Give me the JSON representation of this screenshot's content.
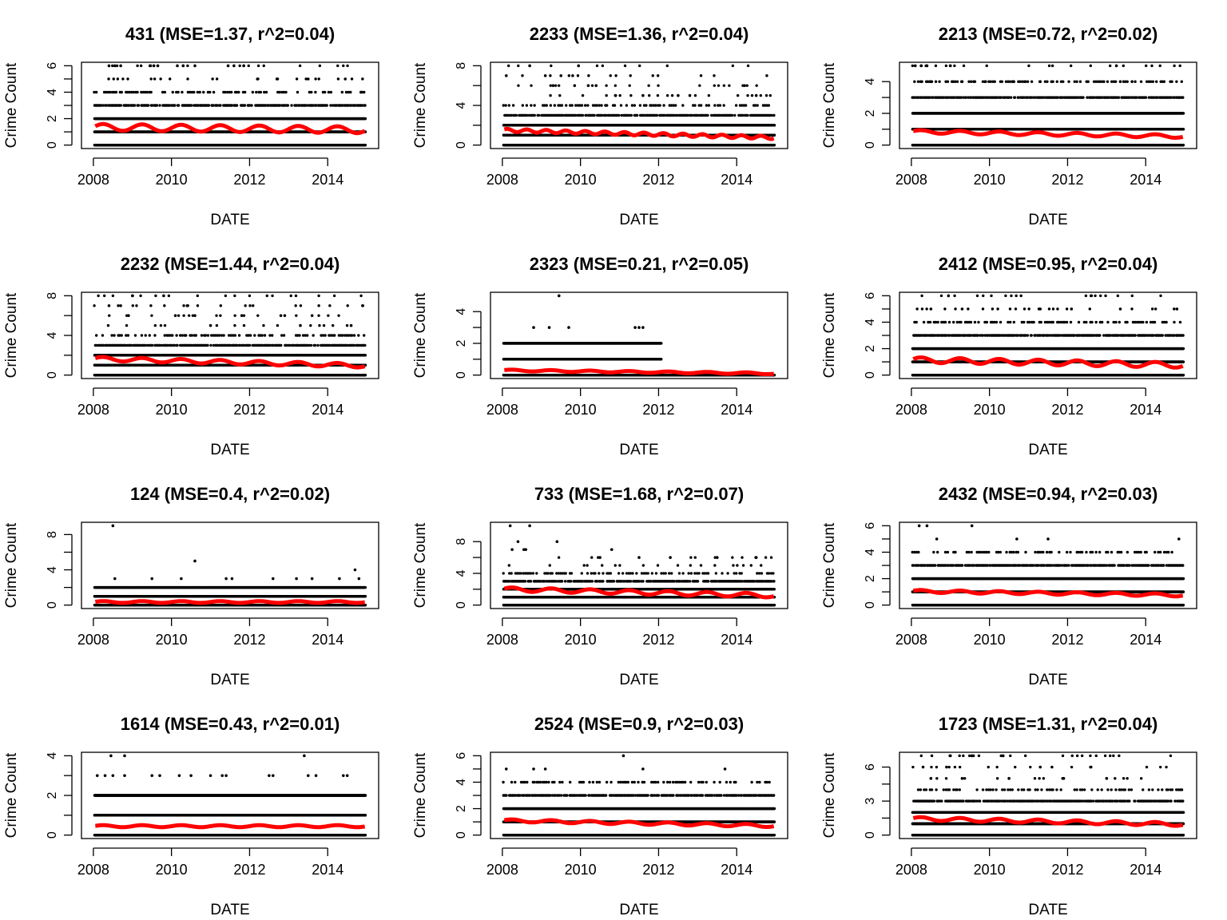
{
  "chart_data": [
    {
      "type": "scatter",
      "title": "431 (MSE=1.37, r^2=0.04)",
      "xlabel": "DATE",
      "ylabel": "Crime Count",
      "xlim": [
        2008,
        2015
      ],
      "ylim": [
        0,
        6
      ],
      "yticks": [
        0,
        2,
        4,
        6
      ],
      "xticks": [
        2008,
        2010,
        2012,
        2014
      ],
      "observed": {
        "levels": [
          0,
          1,
          2,
          3,
          4,
          5,
          6
        ],
        "outlier_points": [
          [
            2008.4,
            6
          ],
          [
            2008.55,
            6
          ],
          [
            2008.7,
            6
          ],
          [
            2009.45,
            6
          ],
          [
            2009.55,
            6
          ],
          [
            2009.65,
            6
          ],
          [
            2010.15,
            6
          ],
          [
            2010.3,
            6
          ],
          [
            2010.6,
            6
          ],
          [
            2011.45,
            6
          ],
          [
            2011.6,
            6
          ],
          [
            2011.85,
            6
          ],
          [
            2012.2,
            5
          ],
          [
            2012.7,
            5
          ],
          [
            2013.5,
            5
          ],
          [
            2014.45,
            5
          ],
          [
            2014.85,
            4
          ]
        ]
      },
      "fit": {
        "color": "#ff0000",
        "mean_start": 1.35,
        "mean_end": 1.15,
        "amplitude": 0.25,
        "period_years": 1.0
      }
    },
    {
      "type": "scatter",
      "title": "2233 (MSE=1.36, r^2=0.04)",
      "xlabel": "DATE",
      "ylabel": "Crime Count",
      "xlim": [
        2008,
        2015
      ],
      "ylim": [
        0,
        8
      ],
      "yticks": [
        0,
        4,
        8
      ],
      "xticks": [
        2008,
        2010,
        2012,
        2014
      ],
      "observed": {
        "levels": [
          0,
          1,
          2,
          3,
          4,
          5,
          6,
          7,
          8
        ],
        "outlier_points": [
          [
            2008.1,
            7
          ],
          [
            2008.7,
            8
          ],
          [
            2009.1,
            7
          ],
          [
            2009.3,
            6
          ],
          [
            2009.5,
            7
          ],
          [
            2009.8,
            7
          ],
          [
            2009.95,
            8
          ],
          [
            2009.85,
            6
          ],
          [
            2010.2,
            6
          ],
          [
            2010.4,
            6
          ],
          [
            2010.9,
            5
          ],
          [
            2011.6,
            5
          ],
          [
            2012.5,
            5
          ],
          [
            2012.8,
            5
          ],
          [
            2014.2,
            6
          ],
          [
            2014.5,
            5
          ]
        ]
      },
      "fit": {
        "color": "#ff0000",
        "mean_start": 1.5,
        "mean_end": 0.75,
        "amplitude": 0.15,
        "period_years": 0.5
      }
    },
    {
      "type": "scatter",
      "title": "2213 (MSE=0.72, r^2=0.02)",
      "xlabel": "DATE",
      "ylabel": "Crime Count",
      "xlim": [
        2008,
        2015
      ],
      "ylim": [
        0,
        5
      ],
      "yticks": [
        0,
        2,
        4
      ],
      "xticks": [
        2008,
        2010,
        2012,
        2014
      ],
      "observed": {
        "levels": [
          0,
          1,
          2,
          3,
          4,
          5
        ],
        "outlier_points": [
          [
            2008.1,
            5
          ],
          [
            2008.25,
            5
          ],
          [
            2008.4,
            5
          ],
          [
            2009.0,
            5
          ],
          [
            2008.5,
            4
          ],
          [
            2009.3,
            4
          ],
          [
            2009.6,
            4
          ],
          [
            2009.9,
            4
          ],
          [
            2010.6,
            4
          ],
          [
            2011.3,
            4
          ],
          [
            2013.25,
            5
          ],
          [
            2013.35,
            4
          ],
          [
            2013.65,
            4
          ]
        ]
      },
      "fit": {
        "color": "#ff0000",
        "mean_start": 0.85,
        "mean_end": 0.55,
        "amplitude": 0.1,
        "period_years": 1.0
      }
    },
    {
      "type": "scatter",
      "title": "2232 (MSE=1.44, r^2=0.04)",
      "xlabel": "DATE",
      "ylabel": "Crime Count",
      "xlim": [
        2008,
        2015
      ],
      "ylim": [
        0,
        8
      ],
      "yticks": [
        0,
        4,
        8
      ],
      "xticks": [
        2008,
        2010,
        2012,
        2014
      ],
      "observed": {
        "levels": [
          0,
          1,
          2,
          3,
          4,
          5,
          6,
          7,
          8
        ],
        "outlier_points": [
          [
            2008.4,
            7
          ],
          [
            2008.7,
            7
          ],
          [
            2009.0,
            8
          ],
          [
            2008.9,
            6
          ],
          [
            2009.8,
            8
          ],
          [
            2010.4,
            7
          ],
          [
            2010.1,
            6
          ],
          [
            2010.6,
            6
          ],
          [
            2011.0,
            5
          ],
          [
            2011.8,
            6
          ],
          [
            2012.8,
            6
          ],
          [
            2012.9,
            6
          ],
          [
            2013.3,
            5
          ],
          [
            2013.6,
            6
          ],
          [
            2014.6,
            5
          ],
          [
            2014.9,
            7
          ]
        ]
      },
      "fit": {
        "color": "#ff0000",
        "mean_start": 1.65,
        "mean_end": 0.95,
        "amplitude": 0.2,
        "period_years": 1.0
      }
    },
    {
      "type": "scatter",
      "title": "2323 (MSE=0.21, r^2=0.05)",
      "xlabel": "DATE",
      "ylabel": "Crime Count",
      "xlim": [
        2008,
        2015
      ],
      "ylim": [
        0,
        5
      ],
      "yticks": [
        0,
        2,
        4
      ],
      "xticks": [
        2008,
        2010,
        2012,
        2014
      ],
      "observed": {
        "levels": [
          0,
          1,
          2
        ],
        "outlier_points": [
          [
            2008.8,
            3
          ],
          [
            2009.2,
            3
          ],
          [
            2009.45,
            5
          ],
          [
            2009.7,
            3
          ],
          [
            2011.4,
            3
          ],
          [
            2011.5,
            3
          ],
          [
            2011.6,
            3
          ]
        ],
        "nonzero_end_year": 2012.1
      },
      "fit": {
        "color": "#ff0000",
        "mean_start": 0.3,
        "mean_end": 0.1,
        "amplitude": 0.05,
        "period_years": 1.0
      }
    },
    {
      "type": "scatter",
      "title": "2412 (MSE=0.95, r^2=0.04)",
      "xlabel": "DATE",
      "ylabel": "Crime Count",
      "xlim": [
        2008,
        2015
      ],
      "ylim": [
        0,
        6
      ],
      "yticks": [
        0,
        2,
        4,
        6
      ],
      "xticks": [
        2008,
        2010,
        2012,
        2014
      ],
      "observed": {
        "levels": [
          0,
          1,
          2,
          3,
          4,
          5,
          6
        ],
        "outlier_points": [
          [
            2008.95,
            6
          ],
          [
            2012.6,
            6
          ],
          [
            2008.5,
            5
          ],
          [
            2009.3,
            5
          ],
          [
            2011.3,
            5
          ],
          [
            2012.1,
            5
          ],
          [
            2013.35,
            5
          ],
          [
            2014.8,
            5
          ]
        ]
      },
      "fit": {
        "color": "#ff0000",
        "mean_start": 1.15,
        "mean_end": 0.75,
        "amplitude": 0.2,
        "period_years": 1.0
      }
    },
    {
      "type": "scatter",
      "title": "124 (MSE=0.4, r^2=0.02)",
      "xlabel": "DATE",
      "ylabel": "Crime Count",
      "xlim": [
        2008,
        2015
      ],
      "ylim": [
        0,
        9
      ],
      "yticks": [
        0,
        4,
        8
      ],
      "xticks": [
        2008,
        2010,
        2012,
        2014
      ],
      "observed": {
        "levels": [
          0,
          1,
          2
        ],
        "outlier_points": [
          [
            2008.5,
            9
          ],
          [
            2008.55,
            3
          ],
          [
            2009.5,
            3
          ],
          [
            2010.25,
            3
          ],
          [
            2010.6,
            5
          ],
          [
            2011.4,
            3
          ],
          [
            2011.55,
            3
          ],
          [
            2012.6,
            3
          ],
          [
            2013.2,
            3
          ],
          [
            2013.6,
            3
          ],
          [
            2014.3,
            3
          ],
          [
            2014.7,
            4
          ],
          [
            2014.8,
            3
          ]
        ]
      },
      "fit": {
        "color": "#ff0000",
        "mean_start": 0.35,
        "mean_end": 0.35,
        "amplitude": 0.1,
        "period_years": 1.0
      }
    },
    {
      "type": "scatter",
      "title": "733 (MSE=1.68, r^2=0.07)",
      "xlabel": "DATE",
      "ylabel": "Crime Count",
      "xlim": [
        2008,
        2015
      ],
      "ylim": [
        0,
        10
      ],
      "yticks": [
        0,
        4,
        8
      ],
      "xticks": [
        2008,
        2010,
        2012,
        2014
      ],
      "observed": {
        "levels": [
          0,
          1,
          2,
          3,
          4,
          5,
          6
        ],
        "outlier_points": [
          [
            2008.2,
            10
          ],
          [
            2008.7,
            10
          ],
          [
            2008.25,
            7
          ],
          [
            2008.4,
            8
          ],
          [
            2008.55,
            7
          ],
          [
            2008.6,
            7
          ],
          [
            2009.4,
            8
          ],
          [
            2010.8,
            7
          ],
          [
            2010.5,
            6
          ],
          [
            2011.5,
            6
          ],
          [
            2012.3,
            6
          ],
          [
            2013.5,
            6
          ],
          [
            2014.5,
            6
          ]
        ]
      },
      "fit": {
        "color": "#ff0000",
        "mean_start": 2.0,
        "mean_end": 1.2,
        "amplitude": 0.25,
        "period_years": 1.0
      }
    },
    {
      "type": "scatter",
      "title": "2432 (MSE=0.94, r^2=0.03)",
      "xlabel": "DATE",
      "ylabel": "Crime Count",
      "xlim": [
        2008,
        2015
      ],
      "ylim": [
        0,
        6
      ],
      "yticks": [
        0,
        2,
        4,
        6
      ],
      "xticks": [
        2008,
        2010,
        2012,
        2014
      ],
      "observed": {
        "levels": [
          0,
          1,
          2,
          3,
          4
        ],
        "outlier_points": [
          [
            2008.2,
            6
          ],
          [
            2008.4,
            6
          ],
          [
            2009.55,
            6
          ],
          [
            2008.65,
            5
          ],
          [
            2010.7,
            5
          ],
          [
            2011.5,
            5
          ],
          [
            2014.85,
            5
          ]
        ]
      },
      "fit": {
        "color": "#ff0000",
        "mean_start": 1.05,
        "mean_end": 0.75,
        "amplitude": 0.1,
        "period_years": 1.0
      }
    },
    {
      "type": "scatter",
      "title": "1614 (MSE=0.43, r^2=0.01)",
      "xlabel": "DATE",
      "ylabel": "Crime Count",
      "xlim": [
        2008,
        2015
      ],
      "ylim": [
        0,
        4
      ],
      "yticks": [
        0,
        2,
        4
      ],
      "xticks": [
        2008,
        2010,
        2012,
        2014
      ],
      "observed": {
        "levels": [
          0,
          1,
          2
        ],
        "outlier_points": [
          [
            2008.1,
            3
          ],
          [
            2008.45,
            4
          ],
          [
            2008.8,
            4
          ],
          [
            2008.3,
            3
          ],
          [
            2008.5,
            3
          ],
          [
            2008.8,
            3
          ],
          [
            2009.5,
            3
          ],
          [
            2009.7,
            3
          ],
          [
            2010.2,
            3
          ],
          [
            2010.5,
            3
          ],
          [
            2011.0,
            3
          ],
          [
            2011.3,
            3
          ],
          [
            2011.4,
            3
          ],
          [
            2012.5,
            3
          ],
          [
            2012.6,
            3
          ],
          [
            2013.4,
            4
          ],
          [
            2013.5,
            3
          ],
          [
            2013.7,
            3
          ],
          [
            2014.4,
            3
          ],
          [
            2014.5,
            3
          ]
        ]
      },
      "fit": {
        "color": "#ff0000",
        "mean_start": 0.45,
        "mean_end": 0.45,
        "amplitude": 0.05,
        "period_years": 1.0
      }
    },
    {
      "type": "scatter",
      "title": "2524 (MSE=0.9, r^2=0.03)",
      "xlabel": "DATE",
      "ylabel": "Crime Count",
      "xlim": [
        2008,
        2015
      ],
      "ylim": [
        0,
        6
      ],
      "yticks": [
        0,
        2,
        4,
        6
      ],
      "xticks": [
        2008,
        2010,
        2012,
        2014
      ],
      "observed": {
        "levels": [
          0,
          1,
          2,
          3,
          4
        ],
        "outlier_points": [
          [
            2011.1,
            6
          ],
          [
            2008.1,
            5
          ],
          [
            2008.8,
            5
          ],
          [
            2009.1,
            5
          ],
          [
            2011.6,
            5
          ],
          [
            2013.7,
            5
          ]
        ]
      },
      "fit": {
        "color": "#ff0000",
        "mean_start": 1.1,
        "mean_end": 0.7,
        "amplitude": 0.1,
        "period_years": 1.0
      }
    },
    {
      "type": "scatter",
      "title": "1723 (MSE=1.31, r^2=0.04)",
      "xlabel": "DATE",
      "ylabel": "Crime Count",
      "xlim": [
        2008,
        2015
      ],
      "ylim": [
        0,
        7
      ],
      "yticks": [
        0,
        3,
        6
      ],
      "xticks": [
        2008,
        2010,
        2012,
        2014
      ],
      "observed": {
        "levels": [
          0,
          1,
          2,
          3,
          4,
          5,
          6,
          7
        ],
        "outlier_points": [
          [
            2009.0,
            7
          ],
          [
            2009.55,
            7
          ],
          [
            2010.35,
            7
          ],
          [
            2008.3,
            6
          ],
          [
            2008.9,
            6
          ],
          [
            2011.3,
            6
          ],
          [
            2011.6,
            6
          ],
          [
            2012.6,
            6
          ],
          [
            2008.5,
            5
          ],
          [
            2009.3,
            5
          ],
          [
            2010.5,
            5
          ],
          [
            2011.9,
            5
          ],
          [
            2013.0,
            5
          ]
        ]
      },
      "fit": {
        "color": "#ff0000",
        "mean_start": 1.45,
        "mean_end": 0.95,
        "amplitude": 0.15,
        "period_years": 1.0
      }
    }
  ]
}
